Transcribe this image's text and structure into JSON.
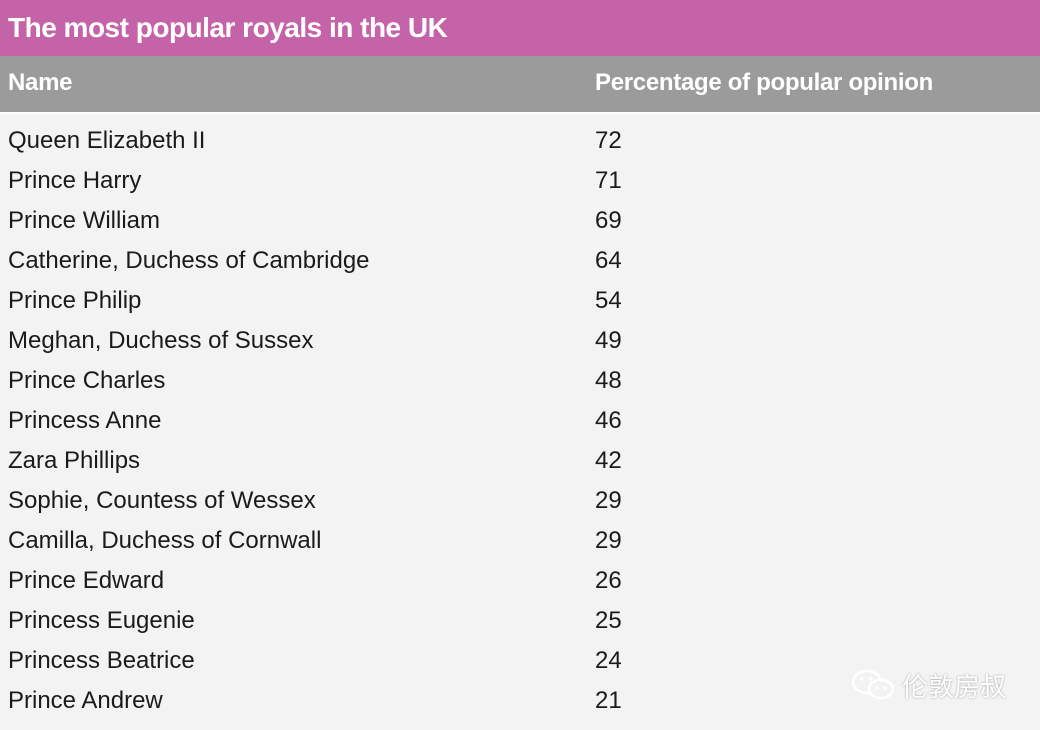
{
  "chart_data": {
    "type": "table",
    "title": "The most popular royals in the UK",
    "columns": [
      "Name",
      "Percentage of popular opinion"
    ],
    "rows": [
      [
        "Queen Elizabeth II",
        "72"
      ],
      [
        "Prince Harry",
        "71"
      ],
      [
        "Prince William",
        "69"
      ],
      [
        "Catherine, Duchess of Cambridge",
        "64"
      ],
      [
        "Prince Philip",
        "54"
      ],
      [
        "Meghan, Duchess of Sussex",
        "49"
      ],
      [
        "Prince Charles",
        "48"
      ],
      [
        "Princess Anne",
        "46"
      ],
      [
        "Zara Phillips",
        "42"
      ],
      [
        "Sophie, Countess of Wessex",
        "29"
      ],
      [
        "Camilla, Duchess of Cornwall",
        "29"
      ],
      [
        "Prince Edward",
        "26"
      ],
      [
        "Princess Eugenie",
        "25"
      ],
      [
        "Princess Beatrice",
        "24"
      ],
      [
        "Prince Andrew",
        "21"
      ]
    ]
  },
  "watermark": {
    "text": "伦敦房叔",
    "icon": "chat-bubbles-icon"
  },
  "colors": {
    "title_bg": "#c563a8",
    "header_bg": "#9b9b9b",
    "body_bg": "#f3f3f3"
  }
}
